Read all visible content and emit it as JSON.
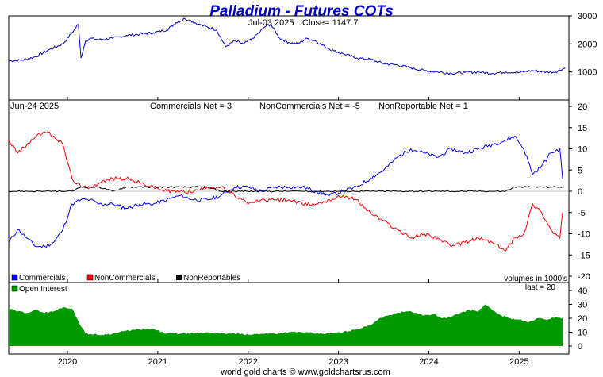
{
  "title": "Palladium - Futures COTs",
  "footer": "world gold charts © www.goldchartsrus.com",
  "price_header": {
    "date": "Jul-03 2025",
    "close": "Close= 1147.7"
  },
  "cot_header": {
    "date": "Jun-24 2025",
    "commercials": "Commercials Net = 3",
    "noncommercials": "NonCommercials Net = -5",
    "nonreportable": "NonReportable Net = 1"
  },
  "legend": {
    "commercials": "Commercials",
    "noncommercials": "NonCommercials",
    "nonreportables": "NonReportables",
    "volumes": "volumes in 1000's",
    "open_interest": "Open Interest",
    "last": "last = 20"
  },
  "colors": {
    "title": "#0000cc",
    "price": "#0000cc",
    "commercials": "#0000ff",
    "noncommercials": "#ff0000",
    "nonreportables": "#000000",
    "open_interest": "#009900",
    "zero_line": "#888888"
  },
  "chart_data": [
    {
      "type": "line",
      "name": "price",
      "ylim": [
        0,
        3000
      ],
      "yticks": [
        1000,
        2000,
        3000
      ],
      "x": [
        2019.35,
        2019.5,
        2019.65,
        2019.8,
        2019.95,
        2020.05,
        2020.12,
        2020.15,
        2020.2,
        2020.25,
        2020.35,
        2020.5,
        2020.65,
        2020.8,
        2020.95,
        2021.1,
        2021.2,
        2021.3,
        2021.35,
        2021.45,
        2021.55,
        2021.65,
        2021.75,
        2021.85,
        2021.95,
        2022.05,
        2022.12,
        2022.18,
        2022.25,
        2022.35,
        2022.45,
        2022.55,
        2022.65,
        2022.75,
        2022.85,
        2022.95,
        2023.05,
        2023.2,
        2023.35,
        2023.5,
        2023.65,
        2023.8,
        2023.95,
        2024.1,
        2024.25,
        2024.4,
        2024.55,
        2024.7,
        2024.85,
        2025.0,
        2025.15,
        2025.3,
        2025.4,
        2025.51
      ],
      "values": [
        1400,
        1420,
        1550,
        1800,
        2000,
        2400,
        2700,
        1500,
        2100,
        2200,
        2150,
        2200,
        2300,
        2350,
        2400,
        2500,
        2750,
        2900,
        2850,
        2700,
        2600,
        2500,
        1900,
        2100,
        2000,
        2200,
        2400,
        2600,
        2700,
        2200,
        2050,
        2000,
        2200,
        2100,
        1900,
        1750,
        1650,
        1500,
        1450,
        1300,
        1250,
        1150,
        1050,
        1000,
        950,
        980,
        1000,
        950,
        1000,
        980,
        1050,
        1000,
        1000,
        1147.7
      ]
    },
    {
      "type": "line",
      "name": "cot",
      "ylim": [
        -20,
        20
      ],
      "yticks": [
        -20,
        -15,
        -10,
        -5,
        0,
        5,
        10,
        15,
        20
      ],
      "x": [
        2019.35,
        2019.45,
        2019.55,
        2019.65,
        2019.75,
        2019.85,
        2019.95,
        2020.05,
        2020.15,
        2020.25,
        2020.35,
        2020.5,
        2020.65,
        2020.8,
        2020.95,
        2021.1,
        2021.25,
        2021.4,
        2021.55,
        2021.7,
        2021.85,
        2022.0,
        2022.15,
        2022.3,
        2022.45,
        2022.6,
        2022.75,
        2022.9,
        2023.05,
        2023.2,
        2023.35,
        2023.5,
        2023.65,
        2023.8,
        2023.95,
        2024.1,
        2024.25,
        2024.4,
        2024.55,
        2024.7,
        2024.85,
        2024.95,
        2025.05,
        2025.15,
        2025.25,
        2025.35,
        2025.45,
        2025.48
      ],
      "series": [
        {
          "name": "Commercials",
          "values": [
            -12,
            -9,
            -11,
            -13,
            -13,
            -12,
            -9,
            -3,
            -2,
            -2,
            -3,
            -3,
            -4,
            -3,
            -3,
            -2,
            -1,
            -2,
            -2,
            -1,
            1,
            1,
            0,
            1,
            1,
            1,
            0,
            -1,
            0,
            1,
            3,
            5,
            8,
            10,
            9,
            8,
            10,
            9,
            10,
            11,
            12,
            13,
            10,
            4,
            6,
            9,
            10,
            3
          ]
        },
        {
          "name": "NonCommercials",
          "values": [
            12,
            9,
            11,
            13,
            14,
            13,
            11,
            3,
            1,
            1,
            2,
            3,
            3,
            2,
            1,
            0,
            0,
            0,
            1,
            1,
            -1,
            -3,
            -2,
            -2,
            -2,
            -3,
            -3,
            -2,
            -1,
            -2,
            -5,
            -7,
            -9,
            -11,
            -10,
            -11,
            -13,
            -12,
            -11,
            -12,
            -14,
            -11,
            -10,
            -3,
            -5,
            -9,
            -11,
            -5
          ]
        },
        {
          "name": "NonReportables",
          "values": [
            0,
            0,
            0,
            0,
            0,
            0,
            0,
            0,
            1,
            1,
            1,
            0,
            1,
            1,
            1,
            1,
            1,
            1,
            1,
            0,
            0,
            0,
            0,
            0,
            0,
            0,
            0,
            0,
            0,
            0,
            0,
            0,
            0,
            0,
            0,
            0,
            0,
            0,
            0,
            0,
            0,
            1,
            1,
            1,
            1,
            1,
            1,
            1
          ]
        }
      ]
    },
    {
      "type": "area",
      "name": "open_interest",
      "ylim": [
        0,
        40
      ],
      "yticks": [
        0,
        10,
        20,
        30,
        40
      ],
      "x": [
        2019.35,
        2019.45,
        2019.55,
        2019.65,
        2019.75,
        2019.85,
        2019.95,
        2020.05,
        2020.12,
        2020.2,
        2020.35,
        2020.5,
        2020.65,
        2020.8,
        2020.95,
        2021.1,
        2021.25,
        2021.4,
        2021.55,
        2021.7,
        2021.85,
        2022.0,
        2022.15,
        2022.3,
        2022.45,
        2022.6,
        2022.75,
        2022.9,
        2023.05,
        2023.2,
        2023.35,
        2023.45,
        2023.55,
        2023.65,
        2023.75,
        2023.85,
        2023.95,
        2024.05,
        2024.15,
        2024.25,
        2024.35,
        2024.45,
        2024.55,
        2024.62,
        2024.7,
        2024.8,
        2024.9,
        2025.0,
        2025.1,
        2025.2,
        2025.3,
        2025.4,
        2025.48
      ],
      "values": [
        27,
        25,
        24,
        26,
        24,
        25,
        28,
        27,
        18,
        9,
        8,
        9,
        11,
        12,
        12,
        9,
        9,
        9,
        10,
        9,
        9,
        8,
        9,
        9,
        10,
        10,
        9,
        9,
        10,
        12,
        15,
        20,
        22,
        24,
        25,
        24,
        22,
        23,
        20,
        21,
        24,
        26,
        25,
        30,
        26,
        22,
        20,
        19,
        17,
        20,
        19,
        21,
        20
      ]
    }
  ],
  "x_axis": {
    "range": [
      2019.35,
      2025.55
    ],
    "year_ticks": [
      2020,
      2021,
      2022,
      2023,
      2024,
      2025
    ],
    "year_labels": [
      "2020",
      "2021",
      "2022",
      "2023",
      "2024",
      "2025"
    ]
  }
}
